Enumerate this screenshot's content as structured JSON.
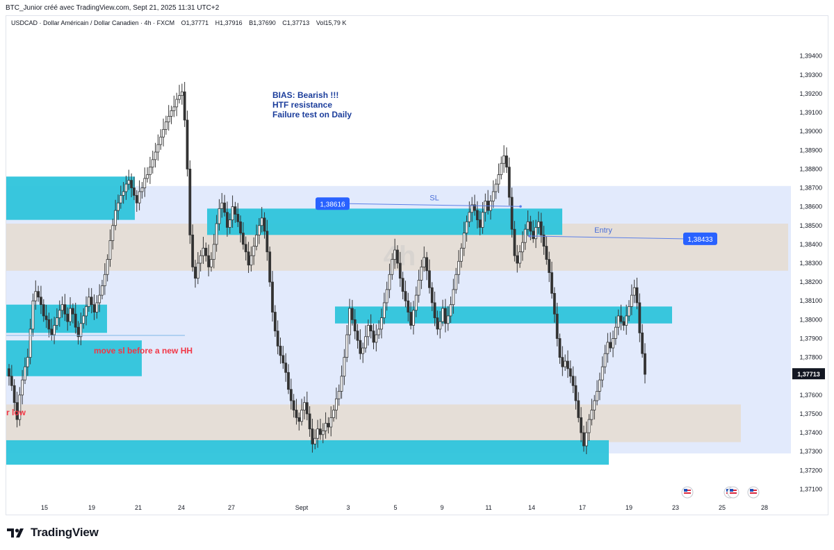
{
  "header": {
    "caption": "BTC_Junior créé avec TradingView.com, Sept 21, 2025 11:31 UTC+2",
    "symbol": "USDCAD · Dollar Américain / Dollar Canadien · 4h · FXCM",
    "open": "O1,37771",
    "high": "H1,37916",
    "low": "B1,37690",
    "close": "C1,37713",
    "volume": "Vol15,79 K"
  },
  "footer": {
    "brand": "TradingView"
  },
  "colors": {
    "candle": "#333333",
    "zone_cyan": "#2ec4db",
    "zone_beige": "#e5ddd5",
    "zone_lightblue": "#dde6fb",
    "label_blue": "#2962ff",
    "annotation_navy": "#1b3d9b",
    "annotation_red": "#f23645"
  },
  "chart_data": {
    "type": "candlestick",
    "symbol": "USDCAD",
    "timeframe": "4h",
    "ylim": [
      1.3705,
      1.3955
    ],
    "y_ticks": [
      "1,37100",
      "1,37200",
      "1,37300",
      "1,37400",
      "1,37500",
      "1,37600",
      "1,37700",
      "1,37800",
      "1,37900",
      "1,38000",
      "1,38100",
      "1,38200",
      "1,38300",
      "1,38400",
      "1,38500",
      "1,38600",
      "1,38700",
      "1,38800",
      "1,38900",
      "1,39000",
      "1,39100",
      "1,39200",
      "1,39300",
      "1,39400"
    ],
    "x_ticks": [
      "15",
      "19",
      "21",
      "24",
      "27",
      "Sept",
      "3",
      "5",
      "9",
      "11",
      "14",
      "17",
      "19",
      "23",
      "25",
      "28"
    ],
    "last_price": "1,37713",
    "price_labels": [
      {
        "text": "1,38616",
        "value": 1.38616
      },
      {
        "text": "1,38433",
        "value": 1.38433
      }
    ],
    "lines": [
      {
        "label": "SL",
        "value": 1.38616
      },
      {
        "label": "Entry",
        "value": 1.38433
      }
    ],
    "annotations": [
      {
        "lines": [
          "BIAS: Bearish !!!",
          "HTF resistance",
          "Failure test on Daily"
        ]
      },
      {
        "text": "move sl before a new HH"
      },
      {
        "text": "r low"
      }
    ],
    "zones": [
      {
        "kind": "lightblue",
        "top": 1.3871,
        "bottom": 1.3729
      },
      {
        "kind": "beige",
        "top": 1.3851,
        "bottom": 1.3826
      },
      {
        "kind": "beige",
        "top": 1.3755,
        "bottom": 1.3735
      },
      {
        "kind": "cyan",
        "top": 1.3876,
        "bottom": 1.3853
      },
      {
        "kind": "cyan",
        "top": 1.3859,
        "bottom": 1.3845
      },
      {
        "kind": "cyan",
        "top": 1.3807,
        "bottom": 1.3798
      },
      {
        "kind": "cyan",
        "top": 1.3808,
        "bottom": 1.3793
      },
      {
        "kind": "cyan",
        "top": 1.3789,
        "bottom": 1.377
      },
      {
        "kind": "cyan",
        "top": 1.3736,
        "bottom": 1.3723
      }
    ],
    "closes": [
      1.377,
      1.3765,
      1.3756,
      1.3747,
      1.376,
      1.3768,
      1.3775,
      1.378,
      1.3795,
      1.381,
      1.3815,
      1.3812,
      1.3808,
      1.3802,
      1.38,
      1.3795,
      1.3792,
      1.3797,
      1.3801,
      1.3805,
      1.3808,
      1.3803,
      1.3799,
      1.3806,
      1.3803,
      1.3796,
      1.3791,
      1.3798,
      1.3802,
      1.3807,
      1.3812,
      1.3808,
      1.3804,
      1.3809,
      1.3813,
      1.3818,
      1.3824,
      1.3832,
      1.3842,
      1.385,
      1.3858,
      1.3862,
      1.3866,
      1.3868,
      1.3872,
      1.3874,
      1.387,
      1.3866,
      1.3862,
      1.3868,
      1.387,
      1.3875,
      1.3877,
      1.3881,
      1.3885,
      1.3889,
      1.3893,
      1.3897,
      1.3901,
      1.3905,
      1.3908,
      1.3911,
      1.3913,
      1.3917,
      1.3919,
      1.3921,
      1.3906,
      1.388,
      1.3845,
      1.3828,
      1.3822,
      1.383,
      1.3834,
      1.3838,
      1.3834,
      1.3828,
      1.3832,
      1.384,
      1.3851,
      1.3859,
      1.3862,
      1.3857,
      1.3849,
      1.3853,
      1.386,
      1.3856,
      1.3852,
      1.3846,
      1.384,
      1.3836,
      1.3829,
      1.3834,
      1.3839,
      1.3845,
      1.385,
      1.3854,
      1.3847,
      1.3836,
      1.382,
      1.3804,
      1.3794,
      1.3786,
      1.3781,
      1.3777,
      1.3772,
      1.3763,
      1.3757,
      1.3752,
      1.3748,
      1.3746,
      1.3752,
      1.3756,
      1.375,
      1.3742,
      1.3734,
      1.3737,
      1.3742,
      1.3739,
      1.3741,
      1.3745,
      1.3743,
      1.3748,
      1.3752,
      1.3758,
      1.3762,
      1.377,
      1.378,
      1.3792,
      1.3806,
      1.38,
      1.3794,
      1.3789,
      1.3782,
      1.3785,
      1.3791,
      1.3797,
      1.3794,
      1.3788,
      1.3792,
      1.3795,
      1.3801,
      1.3809,
      1.3816,
      1.3824,
      1.3832,
      1.3837,
      1.383,
      1.3822,
      1.3815,
      1.381,
      1.3804,
      1.3797,
      1.3805,
      1.3813,
      1.3821,
      1.3828,
      1.3833,
      1.3826,
      1.3817,
      1.3809,
      1.3801,
      1.3795,
      1.3799,
      1.3806,
      1.3798,
      1.3802,
      1.3808,
      1.3816,
      1.3824,
      1.3831,
      1.3838,
      1.3846,
      1.3852,
      1.3857,
      1.3861,
      1.3858,
      1.3853,
      1.3849,
      1.3857,
      1.3863,
      1.3858,
      1.3863,
      1.3868,
      1.3872,
      1.3877,
      1.3883,
      1.3887,
      1.3881,
      1.3865,
      1.3848,
      1.3834,
      1.383,
      1.3836,
      1.3841,
      1.3848,
      1.3852,
      1.3847,
      1.3843,
      1.3849,
      1.3852,
      1.3845,
      1.3839,
      1.3832,
      1.3825,
      1.3814,
      1.3803,
      1.379,
      1.378,
      1.3775,
      1.3778,
      1.3774,
      1.377,
      1.3765,
      1.3757,
      1.3748,
      1.374,
      1.3733,
      1.374,
      1.3747,
      1.3752,
      1.3757,
      1.3762,
      1.3768,
      1.3775,
      1.3782,
      1.3788,
      1.3785,
      1.379,
      1.3796,
      1.3802,
      1.3799,
      1.3797,
      1.3802,
      1.3807,
      1.3813,
      1.3817,
      1.3809,
      1.3793,
      1.3782,
      1.3771
    ]
  }
}
